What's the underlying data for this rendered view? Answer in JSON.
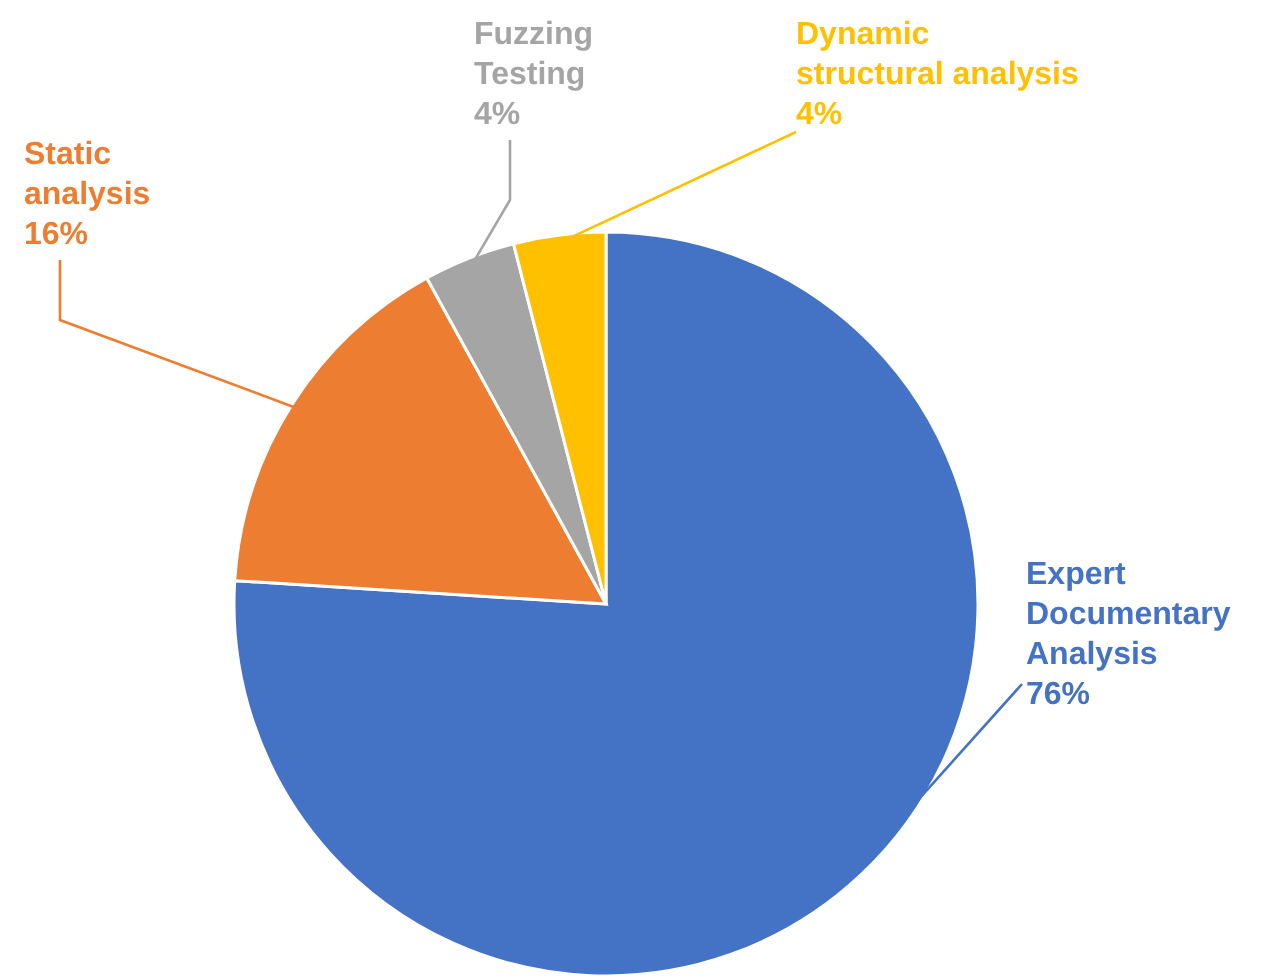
{
  "chart_data": {
    "type": "pie",
    "categories": [
      "Expert Documentary Analysis",
      "Static analysis",
      "Fuzzing Testing",
      "Dynamic structural analysis"
    ],
    "values": [
      76,
      16,
      4,
      4
    ],
    "colors": [
      "#4472c4",
      "#ed7d31",
      "#a5a5a5",
      "#ffc000"
    ],
    "value_labels": [
      "76%",
      "16%",
      "4%",
      "4%"
    ],
    "legend": false
  }
}
